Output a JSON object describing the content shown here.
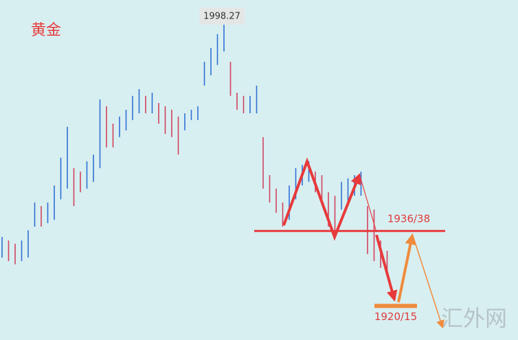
{
  "chart_data": {
    "type": "ohlc",
    "title": "黄金",
    "watermark": "汇外网",
    "high": [
      1935.4,
      1934.4,
      1933.5,
      1934.4,
      1937.3,
      1945.1,
      1944.1,
      1945.1,
      1949.9,
      1957.7,
      1966.4,
      1954.8,
      1953.8,
      1956.7,
      1958.6,
      1974.1,
      1972.2,
      1967.3,
      1969.3,
      1971.2,
      1975.1,
      1977.0,
      1975.1,
      1976.0,
      1973.1,
      1972.2,
      1971.2,
      1969.3,
      1970.2,
      1971.2,
      1972.2,
      1984.7,
      1988.6,
      1992.5,
      1998.27,
      1984.7,
      1976.0,
      1975.1,
      1975.1,
      1978.0,
      1963.5,
      1952.8,
      1949.0,
      1945.1,
      1949.9,
      1954.8,
      1955.7,
      1956.7,
      1953.8,
      1952.8,
      1948.0,
      1947.0,
      1950.9,
      1951.9,
      1952.8,
      1953.8,
      1944.1,
      1943.1,
      1934.4,
      1931.5
    ],
    "low": [
      1929.6,
      1928.6,
      1927.7,
      1928.6,
      1929.6,
      1938.3,
      1938.3,
      1939.3,
      1940.2,
      1946.0,
      1949.0,
      1944.1,
      1948.0,
      1949.0,
      1950.9,
      1954.8,
      1960.6,
      1960.6,
      1963.5,
      1965.4,
      1968.3,
      1970.2,
      1970.2,
      1970.2,
      1967.3,
      1964.4,
      1963.5,
      1958.6,
      1965.4,
      1968.3,
      1968.3,
      1978.0,
      1980.9,
      1983.8,
      1987.6,
      1975.1,
      1971.2,
      1970.2,
      1970.2,
      1970.2,
      1949.0,
      1945.1,
      1942.2,
      1938.3,
      1940.2,
      1946.0,
      1949.9,
      1950.9,
      1948.0,
      1946.0,
      1938.3,
      1936.4,
      1943.1,
      1945.1,
      1947.0,
      1947.0,
      1930.6,
      1928.6,
      1926.7,
      1924.8
    ],
    "up_color": "#2f6fd6",
    "down_color": "#d0415e",
    "ylim": [
      1906.4,
      2002.1
    ],
    "levels": [
      {
        "label": "1936/38",
        "value": 1937.1,
        "color": "#e8393b"
      },
      {
        "label": "1920/15",
        "value": 1916.0,
        "color": "#f08a3c"
      }
    ]
  }
}
